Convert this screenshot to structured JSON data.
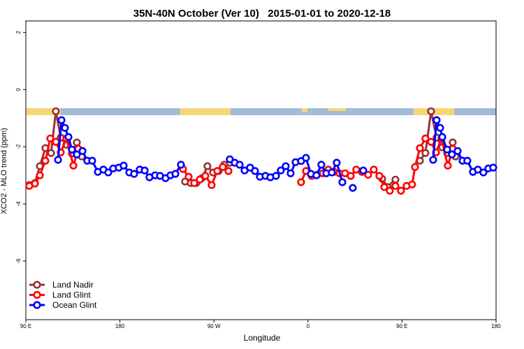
{
  "chart_data": {
    "type": "line",
    "title": "35N-40N October (Ver 10)   2015-01-01 to 2020-12-18",
    "x_label": "Longitude",
    "y_label": "XCO2 - MLO trend (ppm)",
    "xlim": [
      90,
      540
    ],
    "ylim": [
      -8.05,
      2.4
    ],
    "xticks": [
      {
        "value": 90,
        "label": "90 E"
      },
      180,
      {
        "value": 270,
        "label": "90 W"
      },
      {
        "value": 360,
        "label": "0"
      },
      {
        "value": 450,
        "label": "90 E"
      },
      {
        "value": 540,
        "label": "180"
      }
    ],
    "yticks": [
      2,
      0,
      -2,
      -4,
      -6
    ],
    "legend": "bottom-left",
    "series": [
      {
        "name": "Land Nadir",
        "color": "#993333",
        "x": [
          93.3,
          98.7,
          103.4,
          108.7,
          114.1,
          118.7,
          123.4,
          128.8,
          134.1,
          138.8,
          143.5,
          null,
          242.4,
          247.8,
          253.1,
          258.5,
          263.8,
          269.2,
          274.5,
          279.9,
          285.2,
          null,
          431.0,
          436.3,
          441.7,
          443.7,
          null,
          467.1,
          472.4,
          477.8,
          483.1,
          488.5,
          493.2,
          498.5,
          501.2
        ],
        "values": [
          -3.34,
          -3.27,
          -2.68,
          -2.05,
          -2.22,
          -0.76,
          -1.68,
          -1.93,
          -2.24,
          -1.85,
          -2.34,
          null,
          -3.22,
          -3.27,
          -3.27,
          -3.1,
          -2.68,
          -2.9,
          -2.85,
          -2.63,
          -2.56,
          null,
          -3.12,
          -3.41,
          -3.34,
          -3.15,
          null,
          -2.49,
          -2.22,
          -0.76,
          -1.68,
          -2.02,
          -2.22,
          -1.85,
          -2.34
        ]
      },
      {
        "name": "Land Glint",
        "color": "#ff0000",
        "x": [
          93.3,
          98.7,
          103.4,
          108.7,
          113.4,
          118.7,
          123.4,
          128.8,
          135.5,
          140.1,
          null,
          240.4,
          245.8,
          251.1,
          256.5,
          261.8,
          267.8,
          273.2,
          278.5,
          283.9,
          null,
          353.4,
          358.1,
          363.5,
          368.8,
          374.2,
          379.5,
          384.9,
          390.2,
          395.5,
          400.9,
          406.2,
          411.6,
          417.6,
          423.0,
          428.3,
          433.0,
          438.3,
          443.7,
          449.0,
          454.4,
          459.7,
          462.4,
          467.1,
          472.4,
          477.8,
          482.5,
          487.8,
          493.8,
          498.5
        ],
        "values": [
          -3.37,
          -3.29,
          -3.0,
          -2.49,
          -1.71,
          -1.83,
          -2.2,
          -1.71,
          -2.66,
          -2.07,
          null,
          -2.78,
          -3.05,
          -3.27,
          -3.15,
          -3.02,
          -3.34,
          -2.85,
          -2.71,
          -2.85,
          null,
          -3.24,
          -2.85,
          -3.02,
          -2.98,
          -2.93,
          -2.8,
          -2.88,
          -2.93,
          -2.93,
          -3.02,
          -2.8,
          -2.88,
          -2.98,
          -2.8,
          -3.02,
          -3.41,
          -3.54,
          -3.37,
          -3.54,
          -3.37,
          -3.32,
          -2.71,
          -2.05,
          -1.71,
          -1.83,
          -2.2,
          -1.71,
          -2.66,
          -2.07
        ]
      },
      {
        "name": "Ocean Glint",
        "color": "#0000ff",
        "x": [
          120.8,
          124.1,
          127.4,
          130.8,
          134.1,
          138.8,
          144.2,
          148.8,
          153.5,
          158.9,
          164.2,
          168.9,
          173.6,
          178.9,
          183.6,
          189.0,
          193.6,
          199.0,
          203.7,
          208.3,
          213.7,
          218.4,
          223.7,
          228.4,
          233.1,
          238.4,
          null,
          285.2,
          289.9,
          294.6,
          299.3,
          304.6,
          309.3,
          314.0,
          319.3,
          324.0,
          329.4,
          334.0,
          338.7,
          343.4,
          348.1,
          353.4,
          358.1,
          362.8,
          368.1,
          372.8,
          377.5,
          382.8,
          387.5,
          392.9,
          null,
          402.9,
          null,
          412.9,
          null,
          479.8,
          483.1,
          486.5,
          488.5,
          493.2,
          497.8,
          503.2,
          507.9,
          512.5,
          517.9,
          522.6,
          527.9,
          532.6,
          537.3
        ],
        "values": [
          -2.46,
          -1.07,
          -1.34,
          -1.66,
          -2.1,
          -2.27,
          -2.15,
          -2.49,
          -2.49,
          -2.88,
          -2.8,
          -2.9,
          -2.76,
          -2.73,
          -2.66,
          -2.9,
          -2.95,
          -2.8,
          -2.83,
          -3.07,
          -3.0,
          -3.02,
          -3.1,
          -3.0,
          -2.95,
          -2.63,
          null,
          -2.44,
          -2.56,
          -2.63,
          -2.83,
          -2.73,
          -2.85,
          -3.05,
          -3.02,
          -3.07,
          -3.02,
          -2.83,
          -2.68,
          -2.93,
          -2.54,
          -2.5,
          -2.39,
          -2.95,
          -3.0,
          -2.63,
          -2.93,
          -2.9,
          -2.56,
          -3.24,
          null,
          -3.44,
          null,
          -2.83,
          null,
          -2.46,
          -1.07,
          -1.34,
          -1.66,
          -2.1,
          -2.27,
          -2.15,
          -2.49,
          -2.49,
          -2.88,
          -2.8,
          -2.9,
          -2.76,
          -2.73
        ]
      }
    ]
  }
}
